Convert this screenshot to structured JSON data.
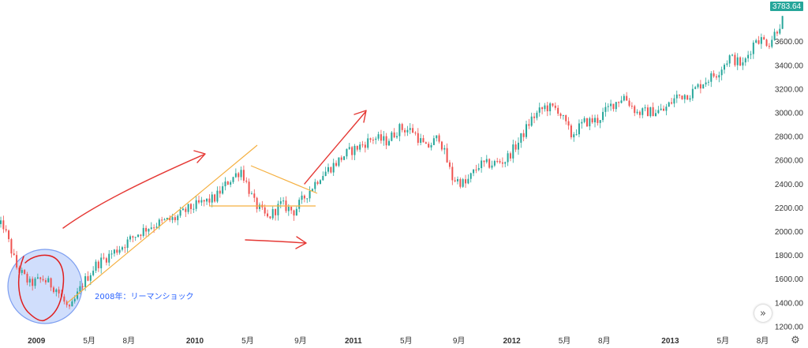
{
  "chart_data": {
    "type": "candlestick",
    "y_axis": {
      "side": "right",
      "ticks": [
        "1200.00",
        "1400.00",
        "1600.00",
        "1800.00",
        "2000.00",
        "2200.00",
        "2400.00",
        "2600.00",
        "2800.00",
        "3000.00",
        "3200.00",
        "3400.00",
        "3600.00"
      ],
      "tick_values": [
        1200,
        1400,
        1600,
        1800,
        2000,
        2200,
        2400,
        2600,
        2800,
        3000,
        3200,
        3400,
        3600
      ],
      "range": [
        1120,
        3910
      ]
    },
    "x_axis": {
      "labels": [
        {
          "text": "2009",
          "date": "2009-01",
          "year": true
        },
        {
          "text": "5月",
          "date": "2009-05",
          "year": false
        },
        {
          "text": "8月",
          "date": "2009-08",
          "year": false
        },
        {
          "text": "2010",
          "date": "2010-01",
          "year": true
        },
        {
          "text": "5月",
          "date": "2010-05",
          "year": false
        },
        {
          "text": "9月",
          "date": "2010-09",
          "year": false
        },
        {
          "text": "2011",
          "date": "2011-01",
          "year": true
        },
        {
          "text": "5月",
          "date": "2011-05",
          "year": false
        },
        {
          "text": "9月",
          "date": "2011-09",
          "year": false
        },
        {
          "text": "2012",
          "date": "2012-01",
          "year": true
        },
        {
          "text": "5月",
          "date": "2012-05",
          "year": false
        },
        {
          "text": "8月",
          "date": "2012-08",
          "year": false
        },
        {
          "text": "2013",
          "date": "2013-01",
          "year": true
        },
        {
          "text": "5月",
          "date": "2013-05",
          "year": false
        },
        {
          "text": "8月",
          "date": "2013-08",
          "year": false
        }
      ],
      "range": [
        "2008-10",
        "2013-10"
      ]
    },
    "series": [
      {
        "values": [
          {
            "date": "2008-10",
            "close": 2050
          },
          {
            "date": "2008-11",
            "close": 1700
          },
          {
            "date": "2008-12",
            "close": 1560
          },
          {
            "date": "2009-01",
            "close": 1600
          },
          {
            "date": "2009-02",
            "close": 1520
          },
          {
            "date": "2009-03",
            "close": 1330
          },
          {
            "date": "2009-04",
            "close": 1560
          },
          {
            "date": "2009-05",
            "close": 1720
          },
          {
            "date": "2009-06",
            "close": 1800
          },
          {
            "date": "2009-07",
            "close": 1880
          },
          {
            "date": "2009-08",
            "close": 1970
          },
          {
            "date": "2009-09",
            "close": 2040
          },
          {
            "date": "2009-10",
            "close": 2080
          },
          {
            "date": "2009-11",
            "close": 2110
          },
          {
            "date": "2009-12",
            "close": 2190
          },
          {
            "date": "2010-01",
            "close": 2240
          },
          {
            "date": "2010-02",
            "close": 2280
          },
          {
            "date": "2010-03",
            "close": 2420
          },
          {
            "date": "2010-04",
            "close": 2520
          },
          {
            "date": "2010-05",
            "close": 2240
          },
          {
            "date": "2010-06",
            "close": 2110
          },
          {
            "date": "2010-07",
            "close": 2230
          },
          {
            "date": "2010-08",
            "close": 2170
          },
          {
            "date": "2010-09",
            "close": 2320
          },
          {
            "date": "2010-10",
            "close": 2470
          },
          {
            "date": "2010-11",
            "close": 2560
          },
          {
            "date": "2010-12",
            "close": 2660
          },
          {
            "date": "2011-01",
            "close": 2720
          },
          {
            "date": "2011-02",
            "close": 2790
          },
          {
            "date": "2011-03",
            "close": 2760
          },
          {
            "date": "2011-04",
            "close": 2870
          },
          {
            "date": "2011-05",
            "close": 2850
          },
          {
            "date": "2011-06",
            "close": 2700
          },
          {
            "date": "2011-07",
            "close": 2800
          },
          {
            "date": "2011-08",
            "close": 2450
          },
          {
            "date": "2011-09",
            "close": 2400
          },
          {
            "date": "2011-10",
            "close": 2560
          },
          {
            "date": "2011-11",
            "close": 2570
          },
          {
            "date": "2011-12",
            "close": 2600
          },
          {
            "date": "2012-01",
            "close": 2750
          },
          {
            "date": "2012-02",
            "close": 2950
          },
          {
            "date": "2012-03",
            "close": 3050
          },
          {
            "date": "2012-04",
            "close": 3030
          },
          {
            "date": "2012-05",
            "close": 2810
          },
          {
            "date": "2012-06",
            "close": 2920
          },
          {
            "date": "2012-07",
            "close": 2940
          },
          {
            "date": "2012-08",
            "close": 3060
          },
          {
            "date": "2012-09",
            "close": 3140
          },
          {
            "date": "2012-10",
            "close": 3000
          },
          {
            "date": "2012-11",
            "close": 3010
          },
          {
            "date": "2012-12",
            "close": 3020
          },
          {
            "date": "2013-01",
            "close": 3140
          },
          {
            "date": "2013-02",
            "close": 3160
          },
          {
            "date": "2013-03",
            "close": 3260
          },
          {
            "date": "2013-04",
            "close": 3330
          },
          {
            "date": "2013-05",
            "close": 3470
          },
          {
            "date": "2013-06",
            "close": 3400
          },
          {
            "date": "2013-07",
            "close": 3630
          },
          {
            "date": "2013-08",
            "close": 3590
          },
          {
            "date": "2013-09",
            "close": 3783.64
          }
        ]
      }
    ],
    "last_price_label": "3783.64",
    "annotation_text": "2008年：リーマンショック",
    "grid": false,
    "colors": {
      "up": "#26a69a",
      "down": "#ef5350",
      "trendline": "#f5b041",
      "arrow": "#e53935",
      "circle_fill": "#c8d8fb",
      "circle_stroke": "#7d9ef0",
      "circle_marker": "#e01e1e",
      "annotation": "#2962ff",
      "price_tag": "#26a69a"
    }
  },
  "controls": {
    "scroll_icon": "double-chevron-right-icon",
    "settings_icon": "gear-icon"
  }
}
